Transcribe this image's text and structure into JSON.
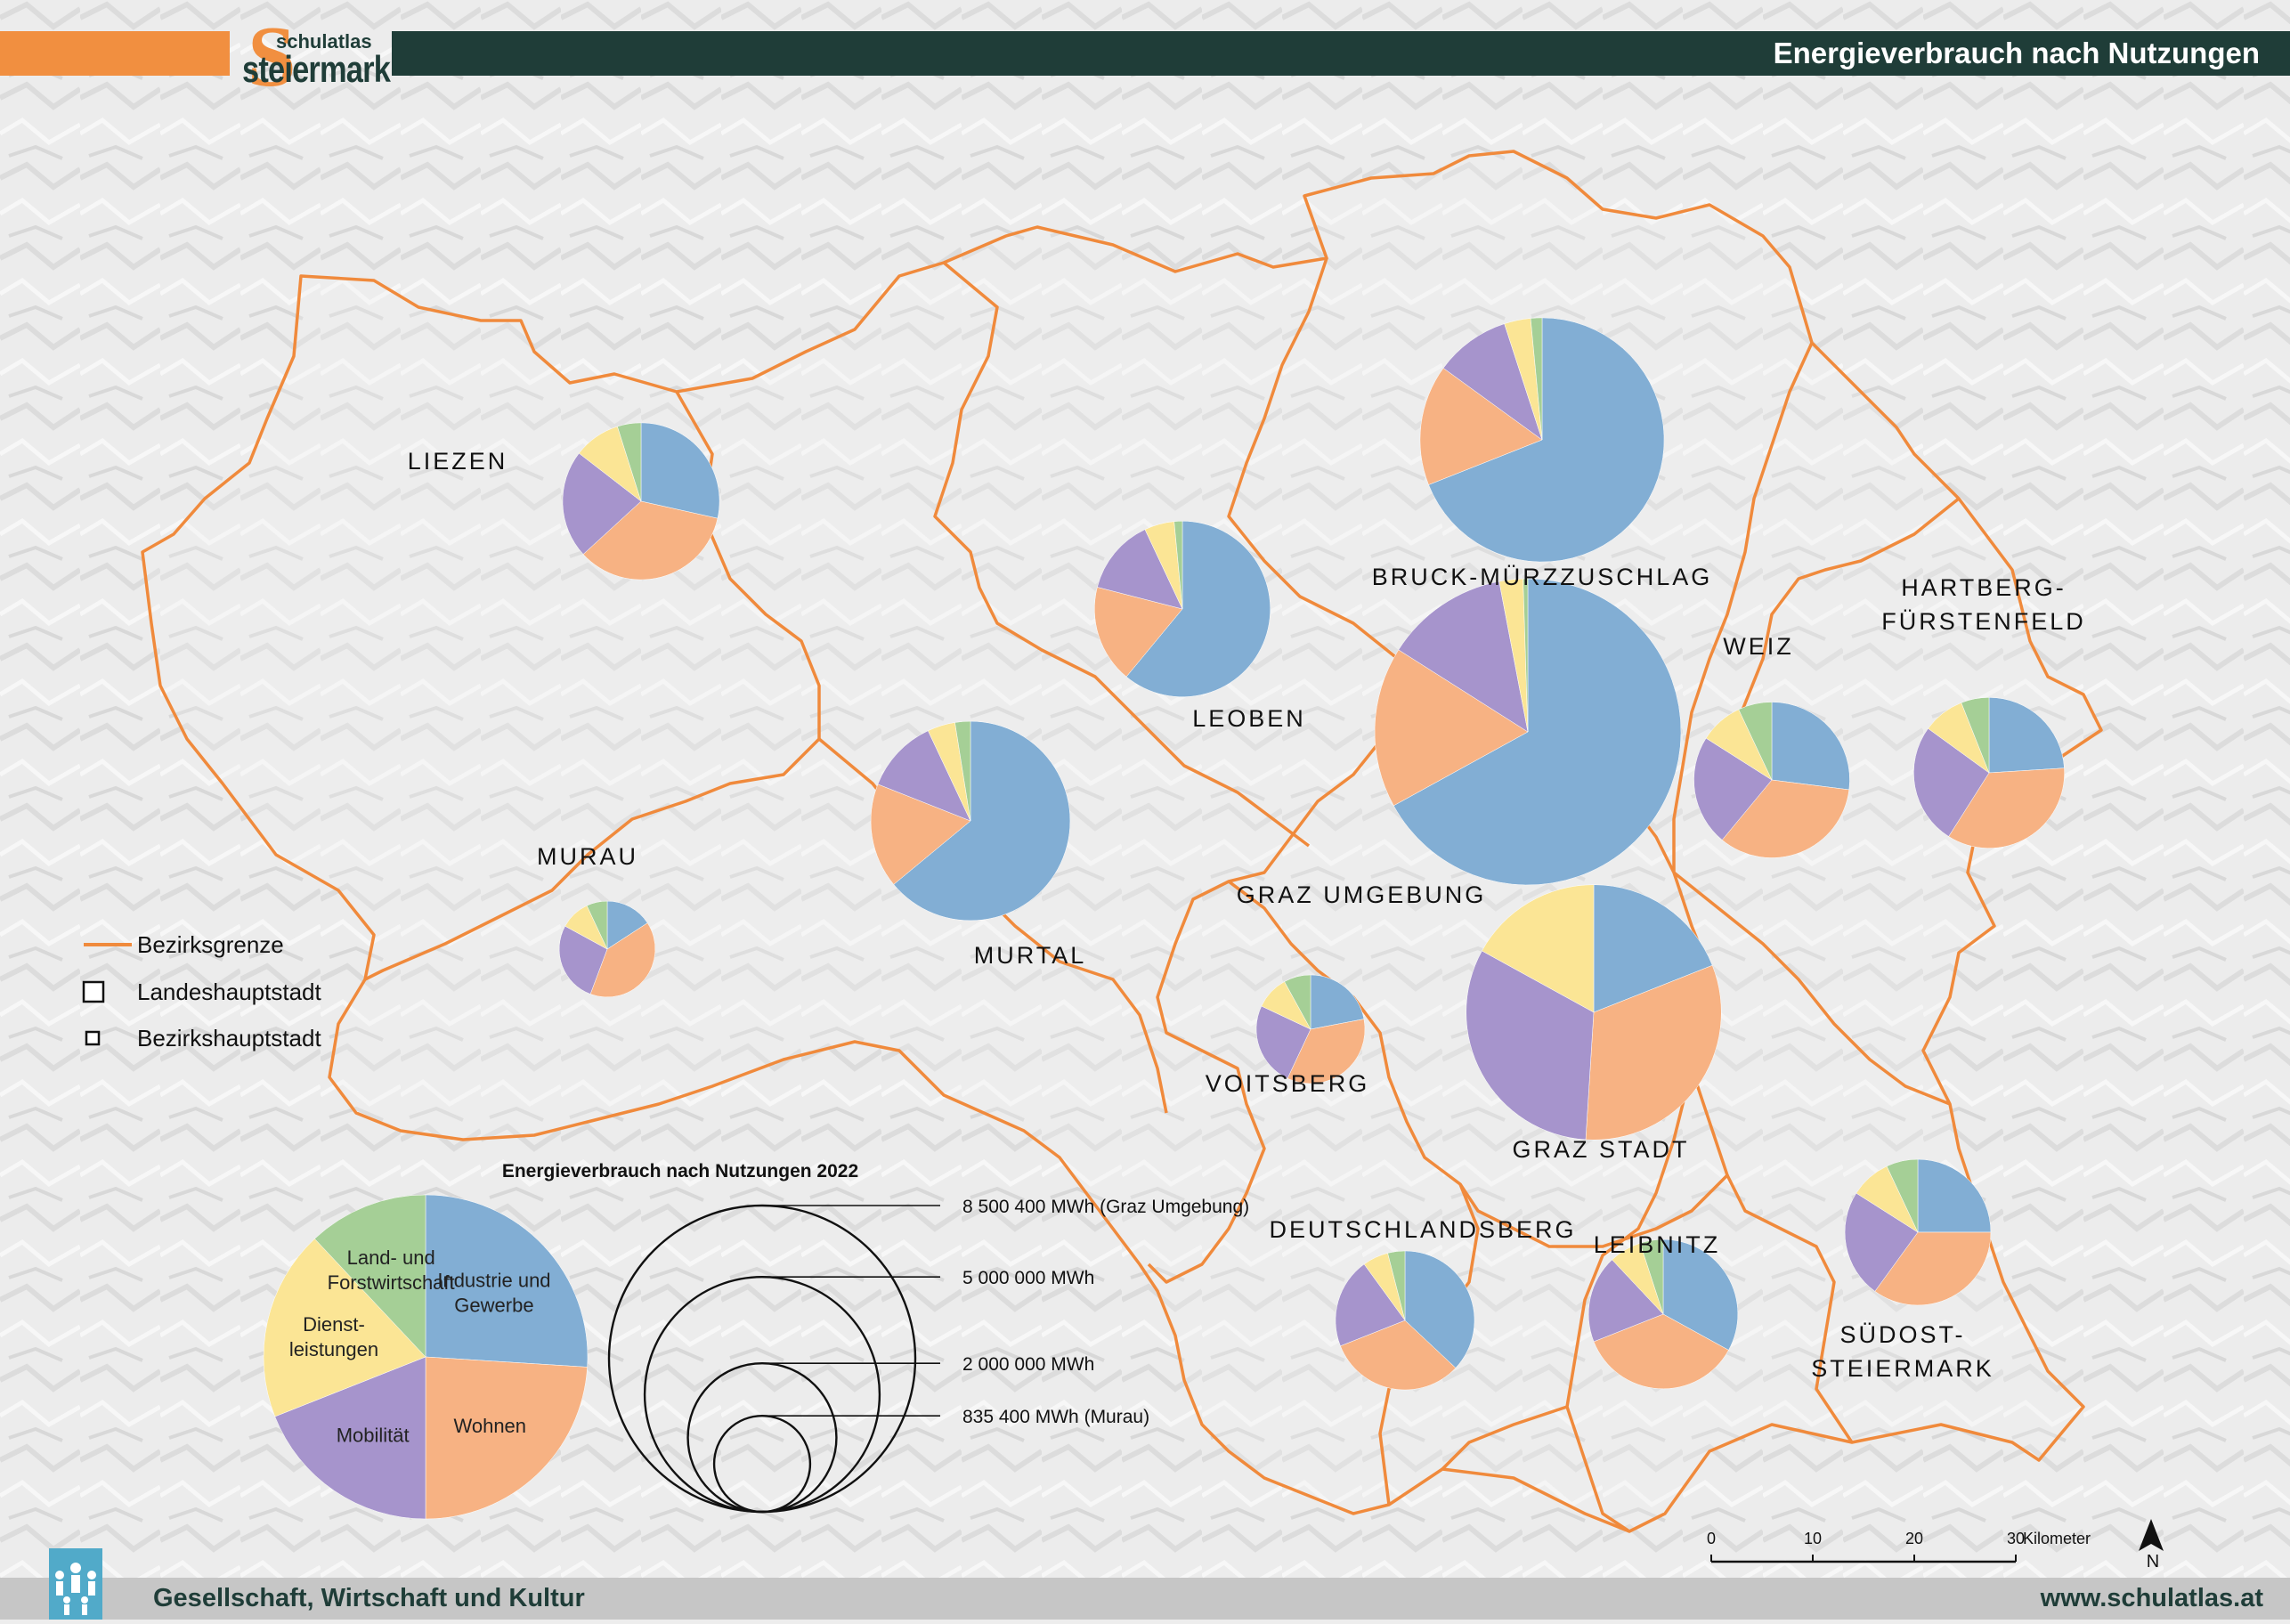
{
  "header": {
    "title": "Energieverbrauch nach Nutzungen",
    "logo_small": "schulatlas",
    "logo_big": "steiermark",
    "logo_letter": "S"
  },
  "footer": {
    "left": "Gesellschaft, Wirtschaft und Kultur",
    "right": "www.schulatlas.at"
  },
  "colors": {
    "industry": "#82aed4",
    "housing": "#f7b283",
    "mobility": "#a694cc",
    "services": "#fbe595",
    "agriculture": "#a5cf96",
    "border": "#f08a3c",
    "header_dark": "#1f3d38",
    "header_orange": "#f18f40"
  },
  "legend": {
    "border_label": "Bezirksgrenze",
    "capital_label": "Landeshauptstadt",
    "district_capital_label": "Bezirkshauptstadt"
  },
  "chart_data": {
    "type": "pie",
    "title": "Energieverbrauch nach Nutzungen 2022",
    "categories": [
      "Industrie und Gewerbe",
      "Wohnen",
      "Mobilität",
      "Dienst-leistungen",
      "Land- und Forstwirtschaft"
    ],
    "example_pie": [
      26,
      24,
      19,
      19,
      12
    ],
    "example_labels": [
      {
        "lines": [
          "Industrie und",
          "Gewerbe"
        ]
      },
      {
        "lines": [
          "Wohnen"
        ]
      },
      {
        "lines": [
          "Mobilität"
        ]
      },
      {
        "lines": [
          "Dienst-",
          "leistungen"
        ]
      },
      {
        "lines": [
          "Land- und",
          "Forstwirtschaft"
        ]
      }
    ],
    "size_legend": [
      {
        "value": 8500400,
        "label": "8 500 400 MWh (Graz Umgebung)"
      },
      {
        "value": 5000000,
        "label": "5 000 000 MWh"
      },
      {
        "value": 2000000,
        "label": "2 000 000 MWh"
      },
      {
        "value": 835400,
        "label": "835 400 MWh (Murau)"
      }
    ],
    "districts": [
      {
        "name": "LIEZEN",
        "lines": [
          "LIEZEN"
        ],
        "total": 2230000,
        "shares": [
          0.257,
          0.313,
          0.201,
          0.087,
          0.044
        ]
      },
      {
        "name": "MURAU",
        "lines": [
          "MURAU"
        ],
        "total": 835400,
        "shares": [
          0.143,
          0.36,
          0.246,
          0.091,
          0.063
        ]
      },
      {
        "name": "MURTAL",
        "lines": [
          "MURTAL"
        ],
        "total": 3600000,
        "shares": [
          0.64,
          0.17,
          0.12,
          0.045,
          0.025
        ]
      },
      {
        "name": "LEOBEN",
        "lines": [
          "LEOBEN"
        ],
        "total": 2800000,
        "shares": [
          0.61,
          0.18,
          0.14,
          0.055,
          0.015
        ]
      },
      {
        "name": "BRUCK-MÜRZZUSCHLAG",
        "lines": [
          "BRUCK-MÜRZZUSCHLAG"
        ],
        "total": 5400000,
        "shares": [
          0.69,
          0.16,
          0.1,
          0.035,
          0.015
        ]
      },
      {
        "name": "HARTBERG-FÜRSTENFELD",
        "lines": [
          "HARTBERG-",
          "FÜRSTENFELD"
        ],
        "total": 2060000,
        "shares": [
          0.24,
          0.35,
          0.26,
          0.09,
          0.06
        ]
      },
      {
        "name": "WEIZ",
        "lines": [
          "WEIZ"
        ],
        "total": 2200000,
        "shares": [
          0.27,
          0.34,
          0.23,
          0.09,
          0.07
        ]
      },
      {
        "name": "GRAZ UMGEBUNG",
        "lines": [
          "GRAZ UMGEBUNG"
        ],
        "total": 8500400,
        "shares": [
          0.67,
          0.17,
          0.13,
          0.025,
          0.005
        ]
      },
      {
        "name": "GRAZ STADT",
        "lines": [
          "GRAZ STADT"
        ],
        "total": 5900000,
        "shares": [
          0.19,
          0.32,
          0.32,
          0.17,
          0
        ]
      },
      {
        "name": "VOITSBERG",
        "lines": [
          "VOITSBERG"
        ],
        "total": 1070000,
        "shares": [
          0.22,
          0.35,
          0.25,
          0.1,
          0.08
        ]
      },
      {
        "name": "DEUTSCHLANDSBERG",
        "lines": [
          "DEUTSCHLANDSBERG"
        ],
        "total": 1750000,
        "shares": [
          0.37,
          0.32,
          0.21,
          0.06,
          0.04
        ]
      },
      {
        "name": "LEIBNITZ",
        "lines": [
          "LEIBNITZ"
        ],
        "total": 2020000,
        "shares": [
          0.33,
          0.36,
          0.19,
          0.07,
          0.05
        ]
      },
      {
        "name": "SÜDOST-STEIERMARK",
        "lines": [
          "SÜDOST-",
          "STEIERMARK"
        ],
        "total": 1930000,
        "shares": [
          0.25,
          0.35,
          0.24,
          0.09,
          0.07
        ]
      }
    ]
  },
  "scale": {
    "ticks": [
      "0",
      "10",
      "20",
      "30"
    ],
    "unit": "Kilometer",
    "north": "N"
  }
}
